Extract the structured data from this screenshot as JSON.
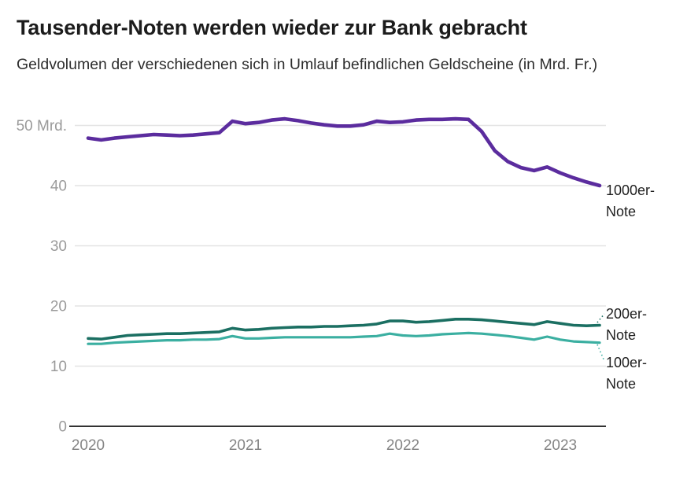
{
  "header": {
    "title": "Tausender-Noten werden wieder zur Bank gebracht",
    "subtitle": "Geldvolumen der verschiedenen sich in Umlauf befindlichen Geldscheine (in Mrd. Fr.)"
  },
  "chart_data": {
    "type": "line",
    "title": "Tausender-Noten werden wieder zur Bank gebracht",
    "subtitle": "Geldvolumen der verschiedenen sich in Umlauf befindlichen Geldscheine (in Mrd. Fr.)",
    "x_unit": "month",
    "x_range": [
      "2020-01",
      "2023-04"
    ],
    "xticks": [
      "2020",
      "2021",
      "2022",
      "2023"
    ],
    "yticks": [
      "0",
      "10",
      "20",
      "30",
      "40",
      "50 Mrd."
    ],
    "ylim": [
      0,
      54
    ],
    "grid": "horizontal",
    "legend_position": "right-edge-labels",
    "axis_color": "#333333",
    "gridline_color": "#e4e4e4",
    "series": [
      {
        "id": "1000",
        "name": "1000er-Note",
        "color": "#5b2c9e",
        "values": [
          47.9,
          47.6,
          47.9,
          48.1,
          48.3,
          48.5,
          48.4,
          48.3,
          48.4,
          48.6,
          48.8,
          50.7,
          50.3,
          50.5,
          50.9,
          51.1,
          50.8,
          50.4,
          50.1,
          49.9,
          49.9,
          50.1,
          50.7,
          50.5,
          50.6,
          50.9,
          51.0,
          51.0,
          51.1,
          51.0,
          49.0,
          45.8,
          44.0,
          43.0,
          42.5,
          43.1,
          42.1,
          41.3,
          40.6,
          40.0
        ]
      },
      {
        "id": "200",
        "name": "200er-Note",
        "color": "#1b6f62",
        "values": [
          14.6,
          14.5,
          14.8,
          15.1,
          15.2,
          15.3,
          15.4,
          15.4,
          15.5,
          15.6,
          15.7,
          16.3,
          16.0,
          16.1,
          16.3,
          16.4,
          16.5,
          16.5,
          16.6,
          16.6,
          16.7,
          16.8,
          17.0,
          17.5,
          17.5,
          17.3,
          17.4,
          17.6,
          17.8,
          17.8,
          17.7,
          17.5,
          17.3,
          17.1,
          16.9,
          17.4,
          17.1,
          16.8,
          16.7,
          16.8
        ]
      },
      {
        "id": "100",
        "name": "100er-Note",
        "color": "#3bafa1",
        "values": [
          13.7,
          13.7,
          13.9,
          14.0,
          14.1,
          14.2,
          14.3,
          14.3,
          14.4,
          14.4,
          14.5,
          15.0,
          14.6,
          14.6,
          14.7,
          14.8,
          14.8,
          14.8,
          14.8,
          14.8,
          14.8,
          14.9,
          15.0,
          15.4,
          15.1,
          15.0,
          15.1,
          15.3,
          15.4,
          15.5,
          15.4,
          15.2,
          15.0,
          14.7,
          14.4,
          14.9,
          14.4,
          14.1,
          14.0,
          13.9
        ]
      }
    ]
  }
}
